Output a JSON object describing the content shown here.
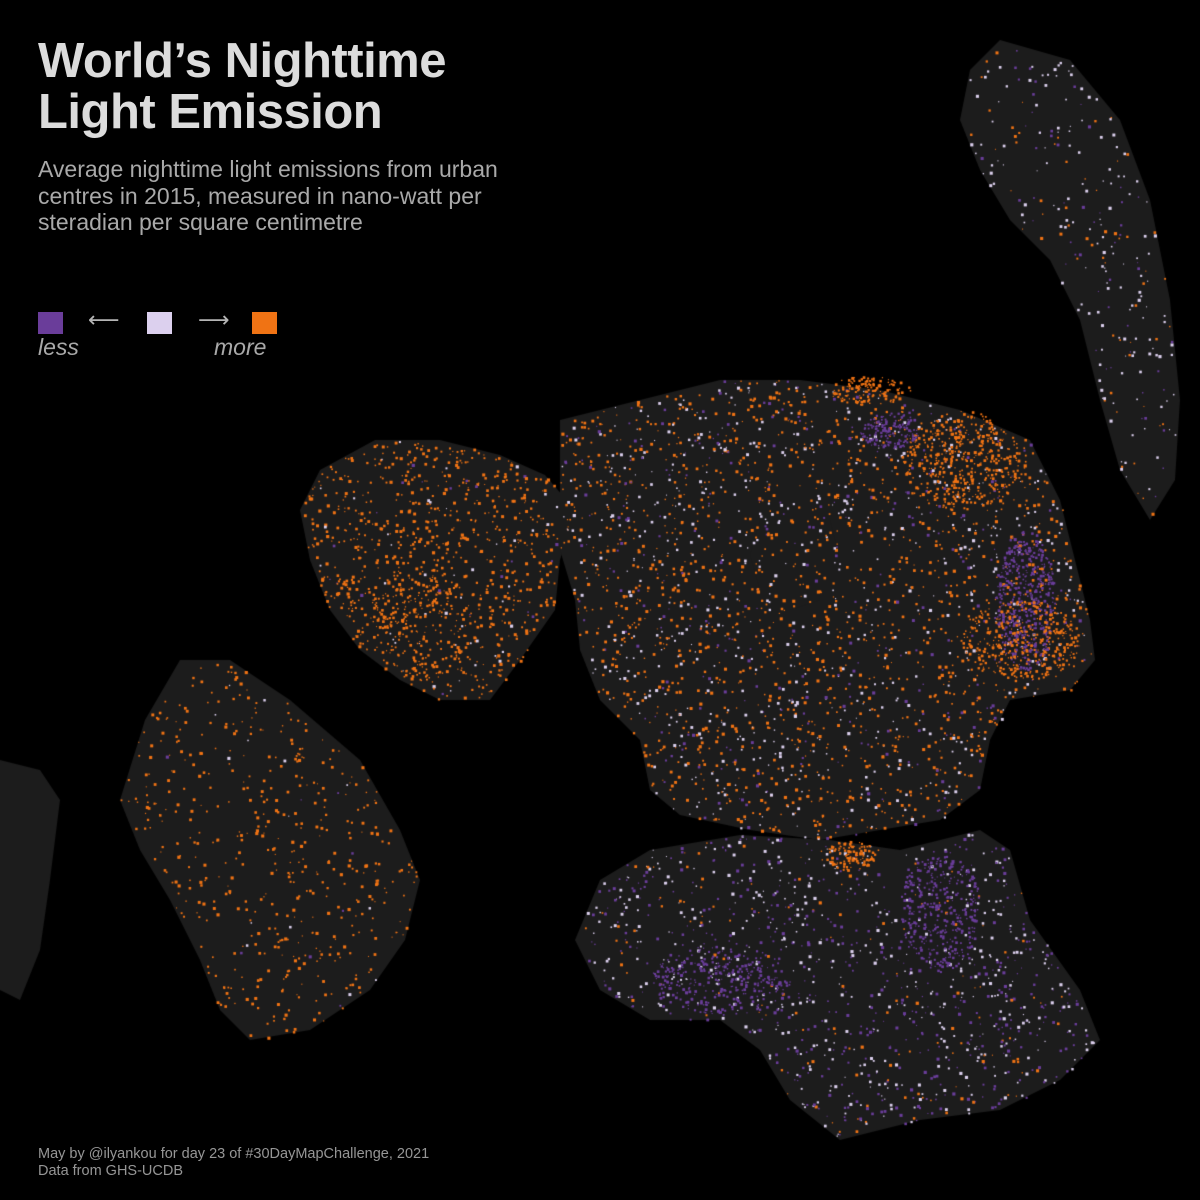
{
  "title": {
    "line1": "World’s Nighttime",
    "line2": "Light Emission"
  },
  "subtitle": "Average nighttime light emissions from urban centres in 2015, measured in nano-watt per steradian per square centimetre",
  "legend": {
    "colors": {
      "low": "#6a3d9a",
      "mid": "#dcd0ee",
      "high": "#f07314"
    },
    "left_arrow": "⟵",
    "right_arrow": "⟶",
    "less_label": "less",
    "more_label": "more"
  },
  "map": {
    "background_color": "#000000",
    "land_color": "#1c1c1c",
    "projection": "polar (north pole centred)",
    "source_note": "Data from GHS-UCDB"
  },
  "footer": {
    "credit": "May by @ilyankou for day 23 of #30DayMapChallenge, 2021",
    "data_source": "Data from GHS-UCDB"
  }
}
